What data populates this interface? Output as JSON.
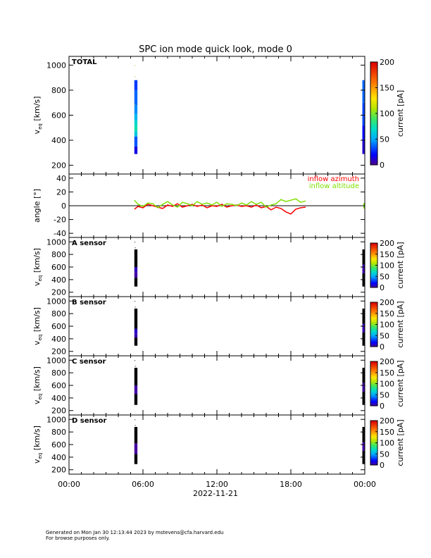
{
  "chart_data": {
    "title": "SPC ion mode quick look, mode 0",
    "xlabel": "2022-11-21",
    "x_ticks": [
      "00:00",
      "06:00",
      "12:00",
      "18:00",
      "00:00"
    ],
    "x_range_hours": [
      0,
      24
    ],
    "panels": [
      {
        "type": "heatmap",
        "label": "TOTAL",
        "ylabel": "v_eq [km/s]",
        "ylabel_main": "v",
        "ylabel_sub": "eq",
        "ylabel_unit": "[km/s]",
        "ylim": [
          130,
          1070
        ],
        "y_ticks": [
          200,
          400,
          600,
          800,
          1000
        ],
        "colorbar": {
          "label": "current [pA]",
          "range": [
            0,
            200
          ],
          "ticks": [
            0,
            50,
            100,
            150,
            200
          ]
        },
        "blocks": [
          {
            "t_start": 5.3,
            "t_end": 5.55,
            "cells": [
              {
                "v0": 290,
                "v1": 350,
                "value": 15
              },
              {
                "v0": 350,
                "v1": 430,
                "value": 35
              },
              {
                "v0": 430,
                "v1": 470,
                "value": 62
              },
              {
                "v0": 470,
                "v1": 520,
                "value": 75
              },
              {
                "v0": 520,
                "v1": 560,
                "value": 68
              },
              {
                "v0": 560,
                "v1": 610,
                "value": 55
              },
              {
                "v0": 610,
                "v1": 680,
                "value": 45
              },
              {
                "v0": 680,
                "v1": 800,
                "value": 38
              },
              {
                "v0": 800,
                "v1": 880,
                "value": 30
              }
            ]
          },
          {
            "t_start": 23.8,
            "t_end": 24.0,
            "cells": [
              {
                "v0": 290,
                "v1": 400,
                "value": 12
              },
              {
                "v0": 400,
                "v1": 520,
                "value": 22
              },
              {
                "v0": 520,
                "v1": 700,
                "value": 32
              },
              {
                "v0": 700,
                "v1": 880,
                "value": 38
              }
            ]
          }
        ]
      },
      {
        "type": "line",
        "ylabel": "angle [°]",
        "ylim": [
          -46,
          46
        ],
        "y_ticks": [
          -40,
          -20,
          0,
          20,
          40
        ],
        "zero_line": true,
        "series": [
          {
            "name": "inflow azimuth",
            "color": "#ff0000",
            "x": [
              5.3,
              5.6,
              6.0,
              6.4,
              6.8,
              7.2,
              7.6,
              8.0,
              8.4,
              8.8,
              9.2,
              9.6,
              10.0,
              10.4,
              10.8,
              11.2,
              11.6,
              12.0,
              12.4,
              12.8,
              13.2,
              13.6,
              14.0,
              14.4,
              14.8,
              15.2,
              15.6,
              16.0,
              16.4,
              16.8,
              17.2,
              17.6,
              18.0,
              18.4,
              18.8,
              19.2
            ],
            "y": [
              -5,
              -1,
              -3,
              2,
              0,
              -2,
              -4,
              1,
              -1,
              3,
              -2,
              0,
              2,
              -1,
              1,
              -3,
              0,
              -1,
              2,
              -2,
              0,
              1,
              -1,
              0,
              -2,
              1,
              -3,
              -1,
              -6,
              -2,
              -4,
              -9,
              -12,
              -5,
              -3,
              -2
            ]
          },
          {
            "name": "inflow altitude",
            "color": "#7fdf00",
            "x": [
              5.3,
              5.6,
              6.0,
              6.4,
              6.8,
              7.2,
              7.6,
              8.0,
              8.4,
              8.8,
              9.2,
              9.6,
              10.0,
              10.4,
              10.8,
              11.2,
              11.6,
              12.0,
              12.4,
              12.8,
              13.2,
              13.6,
              14.0,
              14.4,
              14.8,
              15.2,
              15.6,
              16.0,
              16.4,
              16.8,
              17.2,
              17.6,
              18.0,
              18.4,
              18.8,
              19.2
            ],
            "y": [
              8,
              2,
              -1,
              4,
              3,
              -3,
              2,
              6,
              1,
              -2,
              5,
              3,
              0,
              6,
              2,
              4,
              1,
              5,
              -1,
              3,
              2,
              0,
              4,
              1,
              6,
              2,
              5,
              -2,
              1,
              3,
              9,
              6,
              8,
              10,
              5,
              7
            ]
          }
        ]
      },
      {
        "type": "heatmap",
        "label": "A sensor",
        "ylabel": "v_eq [km/s]",
        "ylabel_main": "v",
        "ylabel_sub": "eq",
        "ylabel_unit": "[km/s]",
        "ylim": [
          130,
          1070
        ],
        "y_ticks": [
          200,
          400,
          600,
          800,
          1000
        ],
        "colorbar": {
          "label": "current [pA]",
          "range": [
            0,
            200
          ],
          "ticks": [
            0,
            50,
            100,
            150,
            200
          ]
        },
        "blocks": [
          {
            "t_start": 5.3,
            "t_end": 5.55,
            "cells": [
              {
                "v0": 290,
                "v1": 430,
                "value": -1
              },
              {
                "v0": 430,
                "v1": 520,
                "value": 4
              },
              {
                "v0": 520,
                "v1": 600,
                "value": 8
              },
              {
                "v0": 600,
                "v1": 880,
                "value": -1
              }
            ]
          },
          {
            "t_start": 23.8,
            "t_end": 24.0,
            "cells": [
              {
                "v0": 290,
                "v1": 500,
                "value": -1
              },
              {
                "v0": 500,
                "v1": 640,
                "value": 5
              },
              {
                "v0": 640,
                "v1": 880,
                "value": -1
              }
            ]
          }
        ]
      },
      {
        "type": "heatmap",
        "label": "B sensor",
        "ylabel": "v_eq [km/s]",
        "ylabel_main": "v",
        "ylabel_sub": "eq",
        "ylabel_unit": "[km/s]",
        "ylim": [
          130,
          1070
        ],
        "y_ticks": [
          200,
          400,
          600,
          800,
          1000
        ],
        "colorbar": {
          "label": "current [pA]",
          "range": [
            0,
            200
          ],
          "ticks": [
            0,
            50,
            100,
            150,
            200
          ]
        },
        "blocks": [
          {
            "t_start": 5.3,
            "t_end": 5.55,
            "cells": [
              {
                "v0": 290,
                "v1": 420,
                "value": -1
              },
              {
                "v0": 420,
                "v1": 480,
                "value": 6
              },
              {
                "v0": 480,
                "v1": 560,
                "value": 10
              },
              {
                "v0": 560,
                "v1": 880,
                "value": -1
              }
            ]
          },
          {
            "t_start": 23.8,
            "t_end": 24.0,
            "cells": [
              {
                "v0": 290,
                "v1": 500,
                "value": -1
              },
              {
                "v0": 500,
                "v1": 640,
                "value": 6
              },
              {
                "v0": 640,
                "v1": 880,
                "value": -1
              }
            ]
          }
        ]
      },
      {
        "type": "heatmap",
        "label": "C sensor",
        "ylabel": "v_eq [km/s]",
        "ylabel_main": "v",
        "ylabel_sub": "eq",
        "ylabel_unit": "[km/s]",
        "ylim": [
          130,
          1070
        ],
        "y_ticks": [
          200,
          400,
          600,
          800,
          1000
        ],
        "colorbar": {
          "label": "current [pA]",
          "range": [
            0,
            200
          ],
          "ticks": [
            0,
            50,
            100,
            150,
            200
          ]
        },
        "blocks": [
          {
            "t_start": 5.3,
            "t_end": 5.55,
            "cells": [
              {
                "v0": 290,
                "v1": 460,
                "value": -1
              },
              {
                "v0": 460,
                "v1": 600,
                "value": 4
              },
              {
                "v0": 600,
                "v1": 880,
                "value": -1
              }
            ]
          },
          {
            "t_start": 23.8,
            "t_end": 24.0,
            "cells": [
              {
                "v0": 290,
                "v1": 500,
                "value": -1
              },
              {
                "v0": 500,
                "v1": 640,
                "value": 4
              },
              {
                "v0": 640,
                "v1": 880,
                "value": -1
              }
            ]
          }
        ]
      },
      {
        "type": "heatmap",
        "label": "D sensor",
        "ylabel": "v_eq [km/s]",
        "ylabel_main": "v",
        "ylabel_sub": "eq",
        "ylabel_unit": "[km/s]",
        "ylim": [
          130,
          1070
        ],
        "y_ticks": [
          200,
          400,
          600,
          800,
          1000
        ],
        "colorbar": {
          "label": "current [pA]",
          "range": [
            0,
            200
          ],
          "ticks": [
            0,
            50,
            100,
            150,
            200
          ]
        },
        "blocks": [
          {
            "t_start": 5.3,
            "t_end": 5.55,
            "cells": [
              {
                "v0": 290,
                "v1": 450,
                "value": -1
              },
              {
                "v0": 450,
                "v1": 620,
                "value": 3
              },
              {
                "v0": 620,
                "v1": 880,
                "value": -1
              }
            ]
          },
          {
            "t_start": 23.8,
            "t_end": 24.0,
            "cells": [
              {
                "v0": 290,
                "v1": 500,
                "value": -1
              },
              {
                "v0": 500,
                "v1": 640,
                "value": 4
              },
              {
                "v0": 640,
                "v1": 880,
                "value": -1
              }
            ]
          }
        ]
      }
    ]
  },
  "footer": {
    "line1": "Generated on Mon Jan 30 12:13:44 2023 by mstevens@cfa.harvard.edu",
    "line2": "For browse purposes only."
  }
}
